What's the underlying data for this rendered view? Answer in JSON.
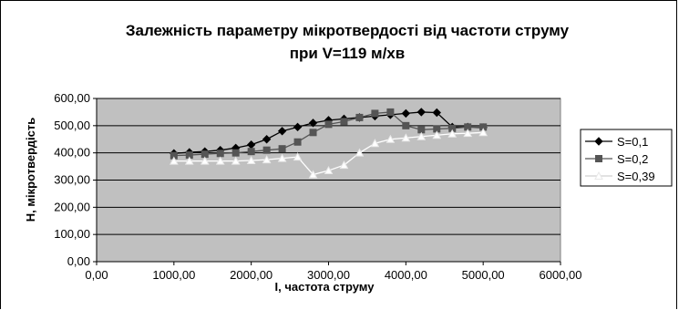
{
  "chart_data": {
    "type": "line",
    "title_line1": "Залежність параметру мікротвердості від частоти струму",
    "title_line2": "при V=119    м/хв",
    "xlabel": "I, частота струму",
    "ylabel": "H, мікротвердість",
    "xlim": [
      0,
      6000
    ],
    "ylim": [
      0,
      600
    ],
    "xticks": [
      0,
      1000,
      2000,
      3000,
      4000,
      5000,
      6000
    ],
    "yticks": [
      0,
      100,
      200,
      300,
      400,
      500,
      600
    ],
    "tick_decimals": 2,
    "tick_decimal_separator": ",",
    "grid": true,
    "plot_background": "#c0c0c0",
    "legend_position": "right",
    "series": [
      {
        "name": "S=0,1",
        "color": "#000000",
        "marker": "diamond",
        "x": [
          1000,
          1200,
          1400,
          1600,
          1800,
          2000,
          2200,
          2400,
          2600,
          2800,
          3000,
          3200,
          3400,
          3600,
          3800,
          4000,
          4200,
          4400,
          4600,
          4800,
          5000
        ],
        "y": [
          398,
          402,
          405,
          410,
          418,
          430,
          450,
          480,
          495,
          510,
          520,
          525,
          530,
          535,
          540,
          545,
          550,
          548,
          495,
          495,
          493
        ]
      },
      {
        "name": "S=0,2",
        "color": "#555555",
        "marker": "square",
        "x": [
          1000,
          1200,
          1400,
          1600,
          1800,
          2000,
          2200,
          2400,
          2600,
          2800,
          3000,
          3200,
          3400,
          3600,
          3800,
          4000,
          4200,
          4400,
          4600,
          4800,
          5000
        ],
        "y": [
          390,
          392,
          395,
          398,
          400,
          405,
          410,
          415,
          440,
          475,
          505,
          515,
          530,
          545,
          550,
          500,
          485,
          488,
          490,
          495,
          495
        ]
      },
      {
        "name": "S=0,39",
        "color": "#ffffff",
        "marker": "triangle",
        "x": [
          1000,
          1200,
          1400,
          1600,
          1800,
          2000,
          2200,
          2400,
          2600,
          2800,
          3000,
          3200,
          3400,
          3600,
          3800,
          4000,
          4200,
          4400,
          4600,
          4800,
          5000
        ],
        "y": [
          370,
          370,
          370,
          370,
          370,
          372,
          375,
          380,
          385,
          320,
          335,
          355,
          400,
          435,
          450,
          455,
          460,
          465,
          470,
          472,
          475
        ]
      }
    ]
  }
}
